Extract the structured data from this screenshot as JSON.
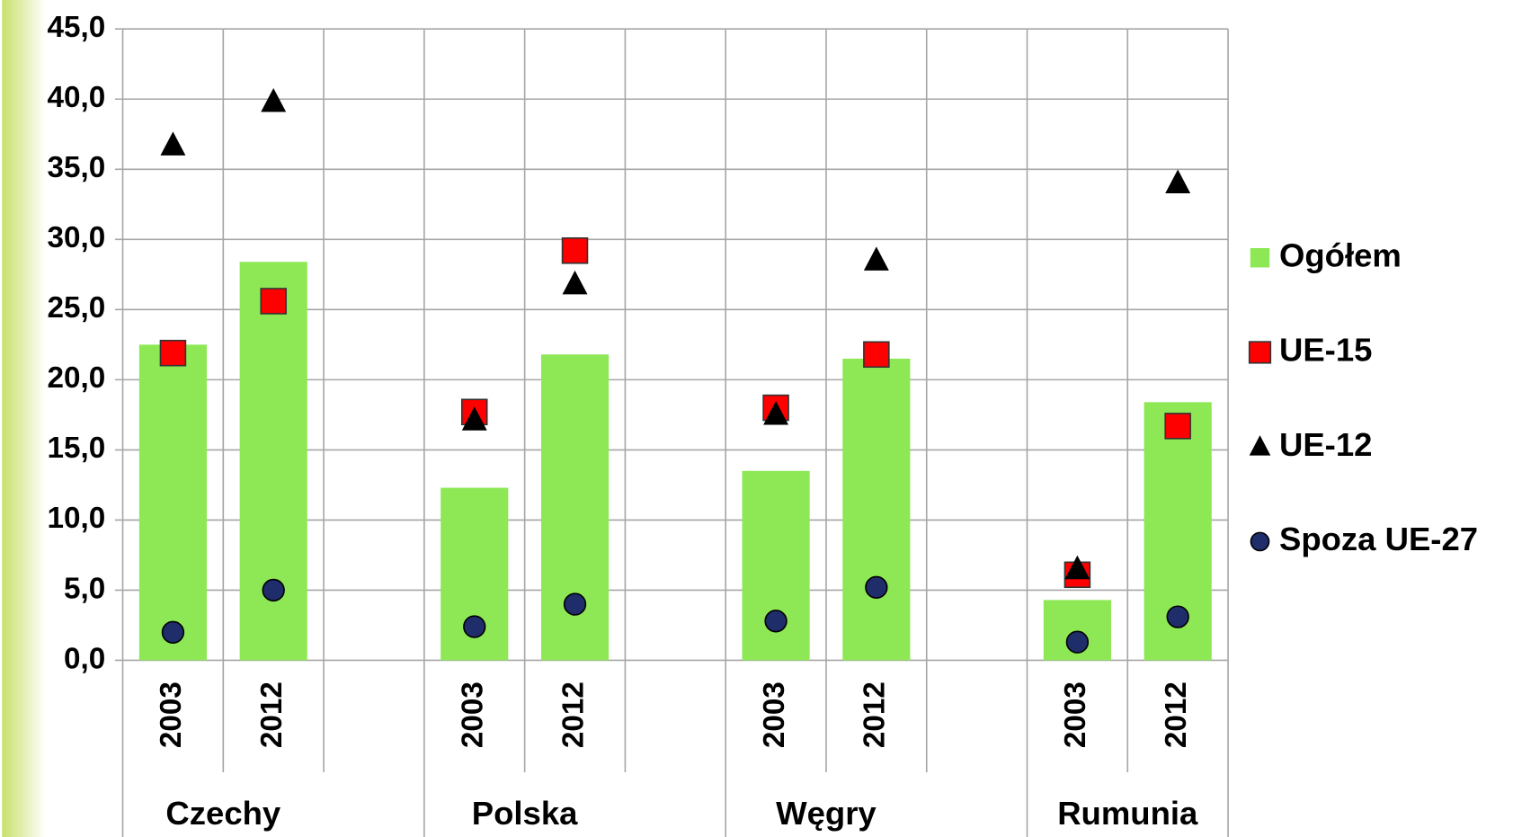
{
  "chart_data": {
    "type": "bar",
    "categories": [
      "2003",
      "2012",
      null,
      "2003",
      "2012",
      null,
      "2003",
      "2012",
      null,
      "2003",
      "2012"
    ],
    "x_groups": [
      "Czechy",
      "Polska",
      "Węgry",
      "Rumunia"
    ],
    "series": [
      {
        "name": "Ogółem",
        "type": "bar",
        "color": "#8ee855",
        "values": [
          22.5,
          28.4,
          null,
          12.3,
          21.8,
          null,
          13.5,
          21.5,
          null,
          4.3,
          18.4
        ]
      },
      {
        "name": "UE-15",
        "type": "scatter",
        "marker": "square",
        "color": "#ff0000",
        "values": [
          21.9,
          25.6,
          null,
          17.7,
          29.2,
          null,
          18.0,
          21.8,
          null,
          6.1,
          16.7
        ]
      },
      {
        "name": "UE-12",
        "type": "scatter",
        "marker": "triangle",
        "color": "#000000",
        "values": [
          36.7,
          39.8,
          null,
          17.1,
          26.8,
          null,
          17.5,
          28.5,
          null,
          6.5,
          34.0
        ]
      },
      {
        "name": "Spoza UE-27",
        "type": "scatter",
        "marker": "circle",
        "color": "#1f2d6b",
        "values": [
          2.0,
          5.0,
          null,
          2.4,
          4.0,
          null,
          2.8,
          5.2,
          null,
          1.3,
          3.1
        ]
      }
    ],
    "ylim": [
      0,
      45
    ],
    "yticks": [
      {
        "value": 0,
        "label": "0,0"
      },
      {
        "value": 5,
        "label": "5,0"
      },
      {
        "value": 10,
        "label": "10,0"
      },
      {
        "value": 15,
        "label": "15,0"
      },
      {
        "value": 20,
        "label": "20,0"
      },
      {
        "value": 25,
        "label": "25,0"
      },
      {
        "value": 30,
        "label": "30,0"
      },
      {
        "value": 35,
        "label": "35,0"
      },
      {
        "value": 40,
        "label": "40,0"
      },
      {
        "value": 45,
        "label": "45,0"
      }
    ],
    "grid": true,
    "legend": "right"
  }
}
